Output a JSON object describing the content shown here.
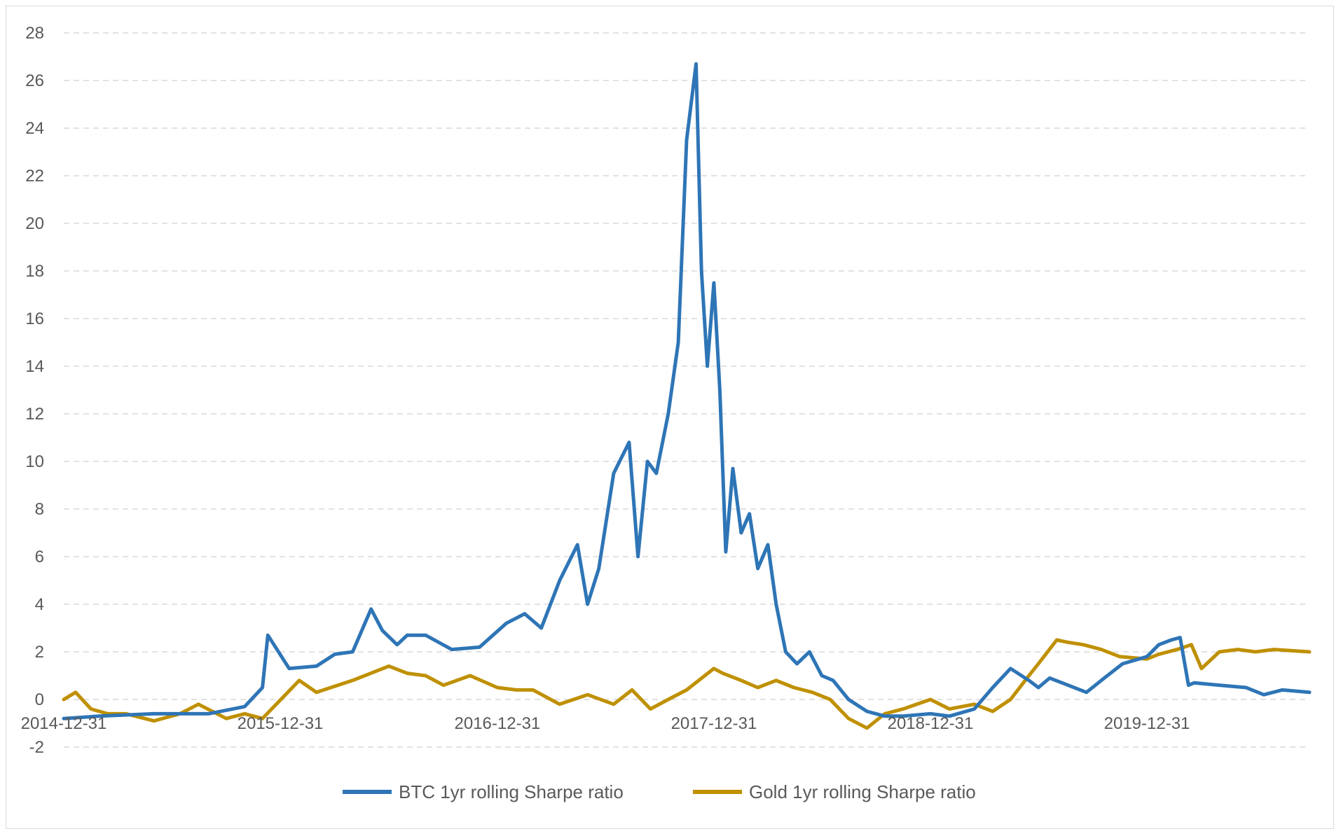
{
  "chart_data": {
    "type": "line",
    "title": "",
    "xlabel": "",
    "ylabel": "",
    "ylim": [
      -2,
      28
    ],
    "y_ticks": [
      -2,
      0,
      2,
      4,
      6,
      8,
      10,
      12,
      14,
      16,
      18,
      20,
      22,
      24,
      26,
      28
    ],
    "x_range": [
      "2014-12-31",
      "2020-09-30"
    ],
    "x_tick_labels": [
      "2014-12-31",
      "2015-12-31",
      "2016-12-31",
      "2017-12-31",
      "2018-12-31",
      "2019-12-31"
    ],
    "grid": "horizontal dashed",
    "legend_position": "bottom",
    "series": [
      {
        "name": "BTC 1yr rolling Sharpe ratio",
        "color": "#2e75b6",
        "x": [
          "2014-12-31",
          "2015-03-01",
          "2015-06-01",
          "2015-09-01",
          "2015-11-01",
          "2015-12-01",
          "2015-12-10",
          "2016-01-15",
          "2016-03-01",
          "2016-04-01",
          "2016-05-01",
          "2016-06-01",
          "2016-06-20",
          "2016-07-15",
          "2016-08-01",
          "2016-09-01",
          "2016-10-15",
          "2016-12-01",
          "2017-01-15",
          "2017-02-15",
          "2017-03-15",
          "2017-04-15",
          "2017-05-15",
          "2017-06-01",
          "2017-06-20",
          "2017-07-15",
          "2017-08-10",
          "2017-08-25",
          "2017-09-10",
          "2017-09-25",
          "2017-10-15",
          "2017-11-01",
          "2017-11-15",
          "2017-12-01",
          "2017-12-10",
          "2017-12-20",
          "2017-12-31",
          "2018-01-10",
          "2018-01-20",
          "2018-02-01",
          "2018-02-15",
          "2018-03-01",
          "2018-03-15",
          "2018-04-01",
          "2018-04-15",
          "2018-05-01",
          "2018-05-20",
          "2018-06-10",
          "2018-07-01",
          "2018-07-20",
          "2018-08-15",
          "2018-09-15",
          "2018-10-15",
          "2018-11-15",
          "2018-12-31",
          "2019-02-01",
          "2019-03-15",
          "2019-04-15",
          "2019-05-15",
          "2019-06-15",
          "2019-07-01",
          "2019-07-20",
          "2019-08-20",
          "2019-09-20",
          "2019-10-20",
          "2019-11-20",
          "2019-12-31",
          "2020-01-20",
          "2020-02-10",
          "2020-02-25",
          "2020-03-10",
          "2020-03-20",
          "2020-05-01",
          "2020-06-15",
          "2020-07-15",
          "2020-08-15",
          "2020-09-30"
        ],
        "y": [
          -0.8,
          -0.7,
          -0.6,
          -0.6,
          -0.3,
          0.5,
          2.7,
          1.3,
          1.4,
          1.9,
          2.0,
          3.8,
          2.9,
          2.3,
          2.7,
          2.7,
          2.1,
          2.2,
          3.2,
          3.6,
          3.0,
          5.0,
          6.5,
          4.0,
          5.5,
          9.5,
          10.8,
          6.0,
          10.0,
          9.5,
          12.0,
          15.0,
          23.5,
          26.7,
          18.0,
          14.0,
          17.5,
          13.0,
          6.2,
          9.7,
          7.0,
          7.8,
          5.5,
          6.5,
          4.0,
          2.0,
          1.5,
          2.0,
          1.0,
          0.8,
          0.0,
          -0.5,
          -0.7,
          -0.7,
          -0.6,
          -0.7,
          -0.4,
          0.5,
          1.3,
          0.8,
          0.5,
          0.9,
          0.6,
          0.3,
          0.9,
          1.5,
          1.8,
          2.3,
          2.5,
          2.6,
          0.6,
          0.7,
          0.6,
          0.5,
          0.2,
          0.4,
          0.3
        ]
      },
      {
        "name": "Gold 1yr rolling Sharpe ratio",
        "color": "#bf9000",
        "x": [
          "2014-12-31",
          "2015-01-20",
          "2015-02-15",
          "2015-03-15",
          "2015-04-15",
          "2015-06-01",
          "2015-07-15",
          "2015-08-15",
          "2015-10-01",
          "2015-11-01",
          "2015-12-01",
          "2016-01-01",
          "2016-02-01",
          "2016-03-01",
          "2016-05-01",
          "2016-07-01",
          "2016-08-01",
          "2016-09-01",
          "2016-10-01",
          "2016-11-15",
          "2016-12-31",
          "2017-02-01",
          "2017-03-01",
          "2017-04-15",
          "2017-06-01",
          "2017-07-15",
          "2017-08-15",
          "2017-09-15",
          "2017-10-15",
          "2017-11-15",
          "2017-12-31",
          "2018-01-15",
          "2018-02-15",
          "2018-03-15",
          "2018-04-15",
          "2018-05-15",
          "2018-06-15",
          "2018-07-15",
          "2018-08-15",
          "2018-09-15",
          "2018-10-15",
          "2018-11-15",
          "2018-12-31",
          "2019-02-01",
          "2019-03-15",
          "2019-04-15",
          "2019-05-15",
          "2019-06-15",
          "2019-07-01",
          "2019-08-01",
          "2019-08-20",
          "2019-09-15",
          "2019-10-15",
          "2019-11-15",
          "2019-12-31",
          "2020-01-20",
          "2020-02-20",
          "2020-03-15",
          "2020-04-01",
          "2020-05-01",
          "2020-06-01",
          "2020-07-01",
          "2020-08-01",
          "2020-09-30"
        ],
        "y": [
          0.0,
          0.3,
          -0.4,
          -0.6,
          -0.6,
          -0.9,
          -0.6,
          -0.2,
          -0.8,
          -0.6,
          -0.8,
          0.0,
          0.8,
          0.3,
          0.8,
          1.4,
          1.1,
          1.0,
          0.6,
          1.0,
          0.5,
          0.4,
          0.4,
          -0.2,
          0.2,
          -0.2,
          0.4,
          -0.4,
          0.0,
          0.4,
          1.3,
          1.1,
          0.8,
          0.5,
          0.8,
          0.5,
          0.3,
          0.0,
          -0.8,
          -1.2,
          -0.6,
          -0.4,
          0.0,
          -0.4,
          -0.2,
          -0.5,
          0.0,
          1.0,
          1.5,
          2.5,
          2.4,
          2.3,
          2.1,
          1.8,
          1.7,
          1.9,
          2.1,
          2.3,
          1.3,
          2.0,
          2.1,
          2.0,
          2.1,
          2.0
        ]
      }
    ]
  }
}
